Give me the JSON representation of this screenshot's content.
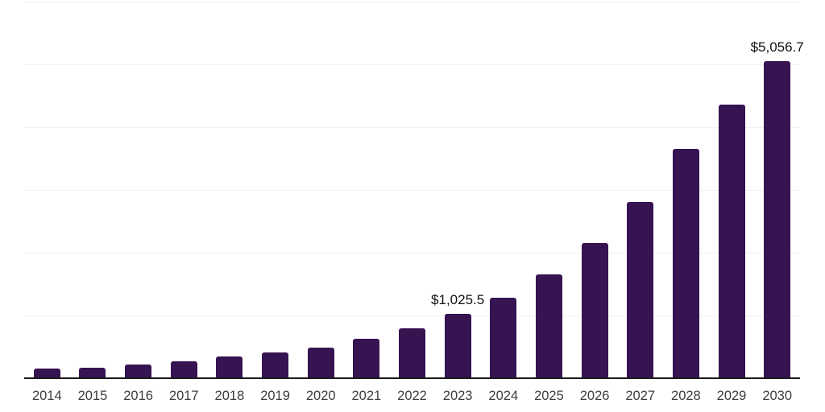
{
  "chart_data": {
    "type": "bar",
    "categories": [
      "2014",
      "2015",
      "2016",
      "2017",
      "2018",
      "2019",
      "2020",
      "2021",
      "2022",
      "2023",
      "2024",
      "2025",
      "2026",
      "2027",
      "2028",
      "2029",
      "2030"
    ],
    "values": [
      150,
      170,
      220,
      265,
      340,
      410,
      490,
      630,
      800,
      1025.5,
      1285,
      1655,
      2155,
      2810,
      3655,
      4360,
      5056.7
    ],
    "data_labels": [
      {
        "category": "2023",
        "text": "$1,025.5"
      },
      {
        "category": "2030",
        "text": "$5,056.7"
      }
    ],
    "y_axis": {
      "min": 0,
      "max": 6000,
      "gridline_interval": 1000,
      "tick_labels_visible": false
    },
    "grid": "horizontal",
    "legend": "none",
    "colors": {
      "bar": "#361351",
      "axis": "#1a1a1a",
      "gridline": "#f1f1f1",
      "x_tick_label": "#3d3d3d",
      "data_label": "#111111",
      "background": "#ffffff"
    }
  }
}
